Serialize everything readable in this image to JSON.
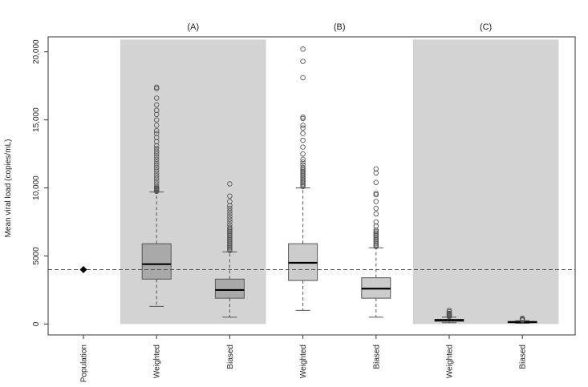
{
  "chart_data": {
    "type": "boxplot",
    "ylabel": "Mean viral load (copies/mL)",
    "ylim": [
      -800,
      21100
    ],
    "y_ticks": [
      0,
      5000,
      10000,
      15000,
      20000
    ],
    "y_tick_labels": [
      "0",
      "5000",
      "10,000",
      "15,000",
      "20,000"
    ],
    "reference_line": 4000,
    "categories": [
      "Population",
      "Weighted",
      "Biased",
      "Weighted",
      "Biased",
      "Weighted",
      "Biased"
    ],
    "panels": [
      {
        "label": "(A)",
        "shaded": true
      },
      {
        "label": "(B)",
        "shaded": false
      },
      {
        "label": "(C)",
        "shaded": true
      }
    ],
    "population_point": {
      "category": "Population",
      "value": 4000
    },
    "boxes": [
      {
        "category": "Weighted",
        "panel": "(A)",
        "whisker_low": 1300,
        "q1": 3300,
        "median": 4400,
        "q3": 5900,
        "whisker_high": 9700,
        "outliers": [
          9750,
          9800,
          9850,
          9900,
          9950,
          10000,
          10100,
          10300,
          10500,
          10700,
          10900,
          11100,
          11300,
          11500,
          11700,
          11900,
          12100,
          12300,
          12500,
          12700,
          12900,
          13100,
          13400,
          13700,
          14000,
          14200,
          14600,
          15000,
          15400,
          15700,
          16100,
          16600,
          17300,
          17400
        ]
      },
      {
        "category": "Biased",
        "panel": "(A)",
        "whisker_low": 500,
        "q1": 1900,
        "median": 2500,
        "q3": 3300,
        "whisker_high": 5300,
        "outliers": [
          5400,
          5500,
          5600,
          5700,
          5800,
          5900,
          6000,
          6100,
          6200,
          6300,
          6400,
          6500,
          6600,
          6700,
          6800,
          6900,
          7000,
          7100,
          7300,
          7500,
          7700,
          7900,
          8100,
          8300,
          8500,
          8700,
          9000,
          9400,
          10300
        ]
      },
      {
        "category": "Weighted",
        "panel": "(B)",
        "whisker_low": 1000,
        "q1": 3200,
        "median": 4500,
        "q3": 5900,
        "whisker_high": 10000,
        "outliers": [
          10100,
          10200,
          10300,
          10400,
          10500,
          10600,
          10700,
          10800,
          10900,
          11000,
          11100,
          11200,
          11300,
          11400,
          11500,
          11700,
          11900,
          12100,
          12500,
          13000,
          13500,
          14000,
          14400,
          14600,
          15100,
          15200,
          18100,
          19300,
          20200
        ]
      },
      {
        "category": "Biased",
        "panel": "(B)",
        "whisker_low": 500,
        "q1": 1900,
        "median": 2600,
        "q3": 3400,
        "whisker_high": 5600,
        "outliers": [
          5700,
          5800,
          5900,
          6000,
          6100,
          6200,
          6300,
          6400,
          6500,
          6600,
          6700,
          6800,
          6900,
          7200,
          7500,
          8100,
          8500,
          9000,
          9500,
          9600,
          10400,
          11100,
          11400
        ]
      },
      {
        "category": "Weighted",
        "panel": "(C)",
        "whisker_low": 100,
        "q1": 200,
        "median": 280,
        "q3": 350,
        "whisker_high": 500,
        "outliers": [
          550,
          600,
          650,
          700,
          750,
          800,
          900,
          1000
        ]
      },
      {
        "category": "Biased",
        "panel": "(C)",
        "whisker_low": 50,
        "q1": 100,
        "median": 140,
        "q3": 190,
        "whisker_high": 250,
        "outliers": [
          280,
          320,
          370,
          420
        ]
      }
    ],
    "colors": {
      "panel_shade": "#d3d3d3",
      "box_fill_shaded": "#a9a9a9",
      "box_fill_plain": "#cccccc",
      "box_stroke": "#555555",
      "median": "#000000",
      "whisker": "#555555",
      "outlier": "#555555",
      "reference_line": "#555555",
      "frame": "#333333"
    }
  }
}
